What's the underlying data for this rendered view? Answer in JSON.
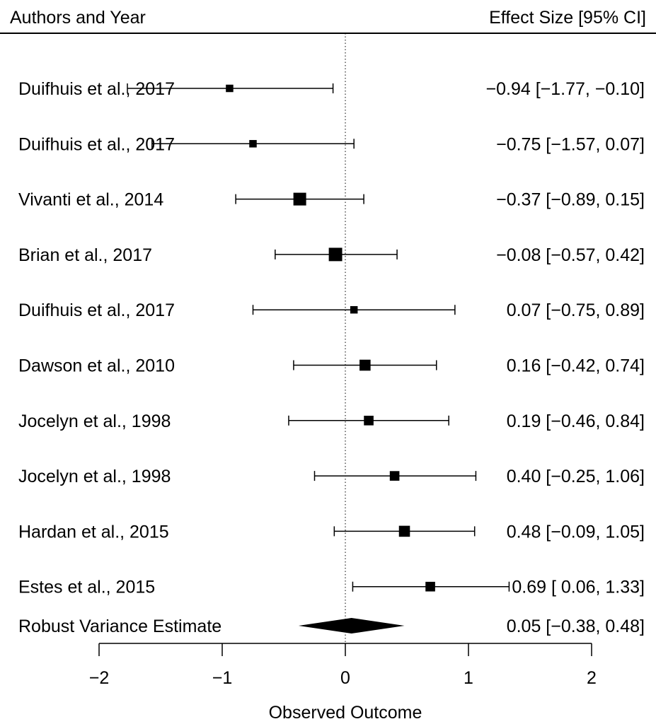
{
  "chart_data": {
    "type": "forest",
    "header_left": "Authors and Year",
    "header_right": "Effect Size [95% CI]",
    "xlabel": "Observed Outcome",
    "xlim": [
      -2,
      2
    ],
    "xticks": [
      -2,
      -1,
      0,
      1,
      2
    ],
    "xtick_labels": [
      "−2",
      "−1",
      "0",
      "1",
      "2"
    ],
    "reference_line": 0,
    "studies": [
      {
        "label": "Duifhuis et al., 2017",
        "estimate": -0.94,
        "lower": -1.77,
        "upper": -0.1,
        "ci_text": "−0.94 [−1.77, −0.10]",
        "weight": 1
      },
      {
        "label": "Duifhuis et al., 2017",
        "estimate": -0.75,
        "lower": -1.57,
        "upper": 0.07,
        "ci_text": "−0.75 [−1.57,  0.07]",
        "weight": 1
      },
      {
        "label": "Vivanti et al., 2014",
        "estimate": -0.37,
        "lower": -0.89,
        "upper": 0.15,
        "ci_text": "−0.37 [−0.89,  0.15]",
        "weight": 4
      },
      {
        "label": "Brian et al., 2017",
        "estimate": -0.08,
        "lower": -0.57,
        "upper": 0.42,
        "ci_text": "−0.08 [−0.57,  0.42]",
        "weight": 4.5
      },
      {
        "label": "Duifhuis et al., 2017",
        "estimate": 0.07,
        "lower": -0.75,
        "upper": 0.89,
        "ci_text": "0.07 [−0.75,  0.89]",
        "weight": 1
      },
      {
        "label": "Dawson et al., 2010",
        "estimate": 0.16,
        "lower": -0.42,
        "upper": 0.74,
        "ci_text": "0.16 [−0.42,  0.74]",
        "weight": 2.8
      },
      {
        "label": "Jocelyn et al., 1998",
        "estimate": 0.19,
        "lower": -0.46,
        "upper": 0.84,
        "ci_text": "0.19 [−0.46,  0.84]",
        "weight": 2
      },
      {
        "label": "Jocelyn et al., 1998",
        "estimate": 0.4,
        "lower": -0.25,
        "upper": 1.06,
        "ci_text": "0.40 [−0.25,  1.06]",
        "weight": 2
      },
      {
        "label": "Hardan et al., 2015",
        "estimate": 0.48,
        "lower": -0.09,
        "upper": 1.05,
        "ci_text": "0.48 [−0.09,  1.05]",
        "weight": 2.8
      },
      {
        "label": "Estes et al., 2015",
        "estimate": 0.69,
        "lower": 0.06,
        "upper": 1.33,
        "ci_text": "0.69 [ 0.06,  1.33]",
        "weight": 2
      }
    ],
    "summary": {
      "label": "Robust Variance Estimate",
      "estimate": 0.05,
      "lower": -0.38,
      "upper": 0.48,
      "ci_text": "0.05 [−0.38, 0.48]"
    },
    "colors": {
      "ink": "#000000",
      "background": "#ffffff"
    }
  }
}
